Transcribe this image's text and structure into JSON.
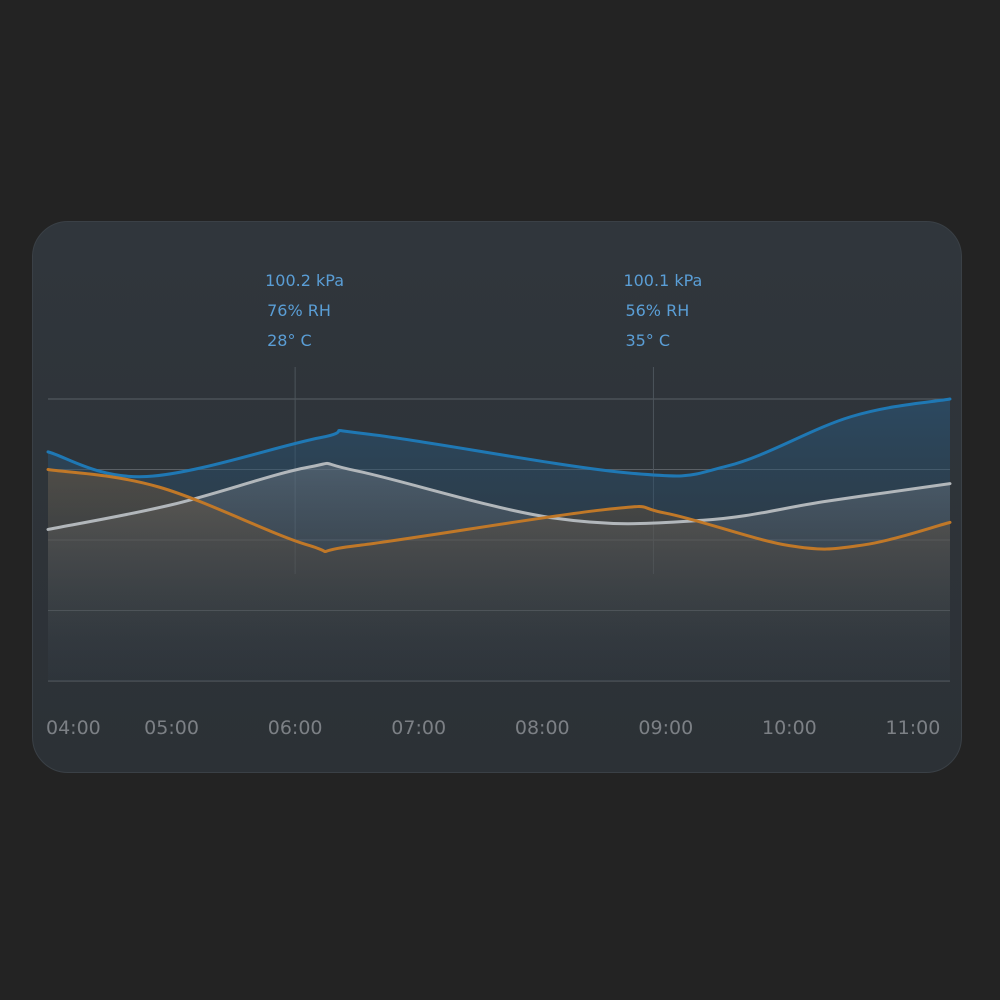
{
  "chart_data": {
    "type": "line",
    "categories": [
      "04:00",
      "05:00",
      "06:00",
      "07:00",
      "08:00",
      "09:00",
      "10:00",
      "11:00"
    ],
    "x_range": [
      4.0,
      11.3
    ],
    "y_range": [
      0,
      4
    ],
    "grid": true,
    "legend": "none",
    "series": [
      {
        "color": "#1f78b4",
        "fill": "#2a5a80",
        "points": [
          [
            4.0,
            3.25
          ],
          [
            4.8,
            2.9
          ],
          [
            6.2,
            3.45
          ],
          [
            6.6,
            3.5
          ],
          [
            8.7,
            2.95
          ],
          [
            9.5,
            3.05
          ],
          [
            10.5,
            3.75
          ],
          [
            11.3,
            4.0
          ]
        ]
      },
      {
        "color": "#b2b7bb",
        "fill": "#7d8690",
        "points": [
          [
            4.0,
            2.15
          ],
          [
            5.0,
            2.5
          ],
          [
            6.1,
            3.03
          ],
          [
            6.5,
            2.98
          ],
          [
            8.1,
            2.31
          ],
          [
            9.3,
            2.28
          ],
          [
            10.3,
            2.55
          ],
          [
            11.3,
            2.8
          ]
        ]
      },
      {
        "color": "#c07828",
        "fill": "#7a5a38",
        "points": [
          [
            4.0,
            3.0
          ],
          [
            4.9,
            2.75
          ],
          [
            6.1,
            1.93
          ],
          [
            6.5,
            1.92
          ],
          [
            8.5,
            2.43
          ],
          [
            9.0,
            2.38
          ],
          [
            10.0,
            1.92
          ],
          [
            10.6,
            1.93
          ],
          [
            11.3,
            2.25
          ]
        ]
      }
    ],
    "annotations": [
      {
        "x": 6.0,
        "lines": [
          "100.2 kPa",
          "76% RH",
          "28° C"
        ]
      },
      {
        "x": 8.9,
        "lines": [
          "100.1 kPa",
          "56% RH",
          "35° C"
        ]
      }
    ]
  }
}
